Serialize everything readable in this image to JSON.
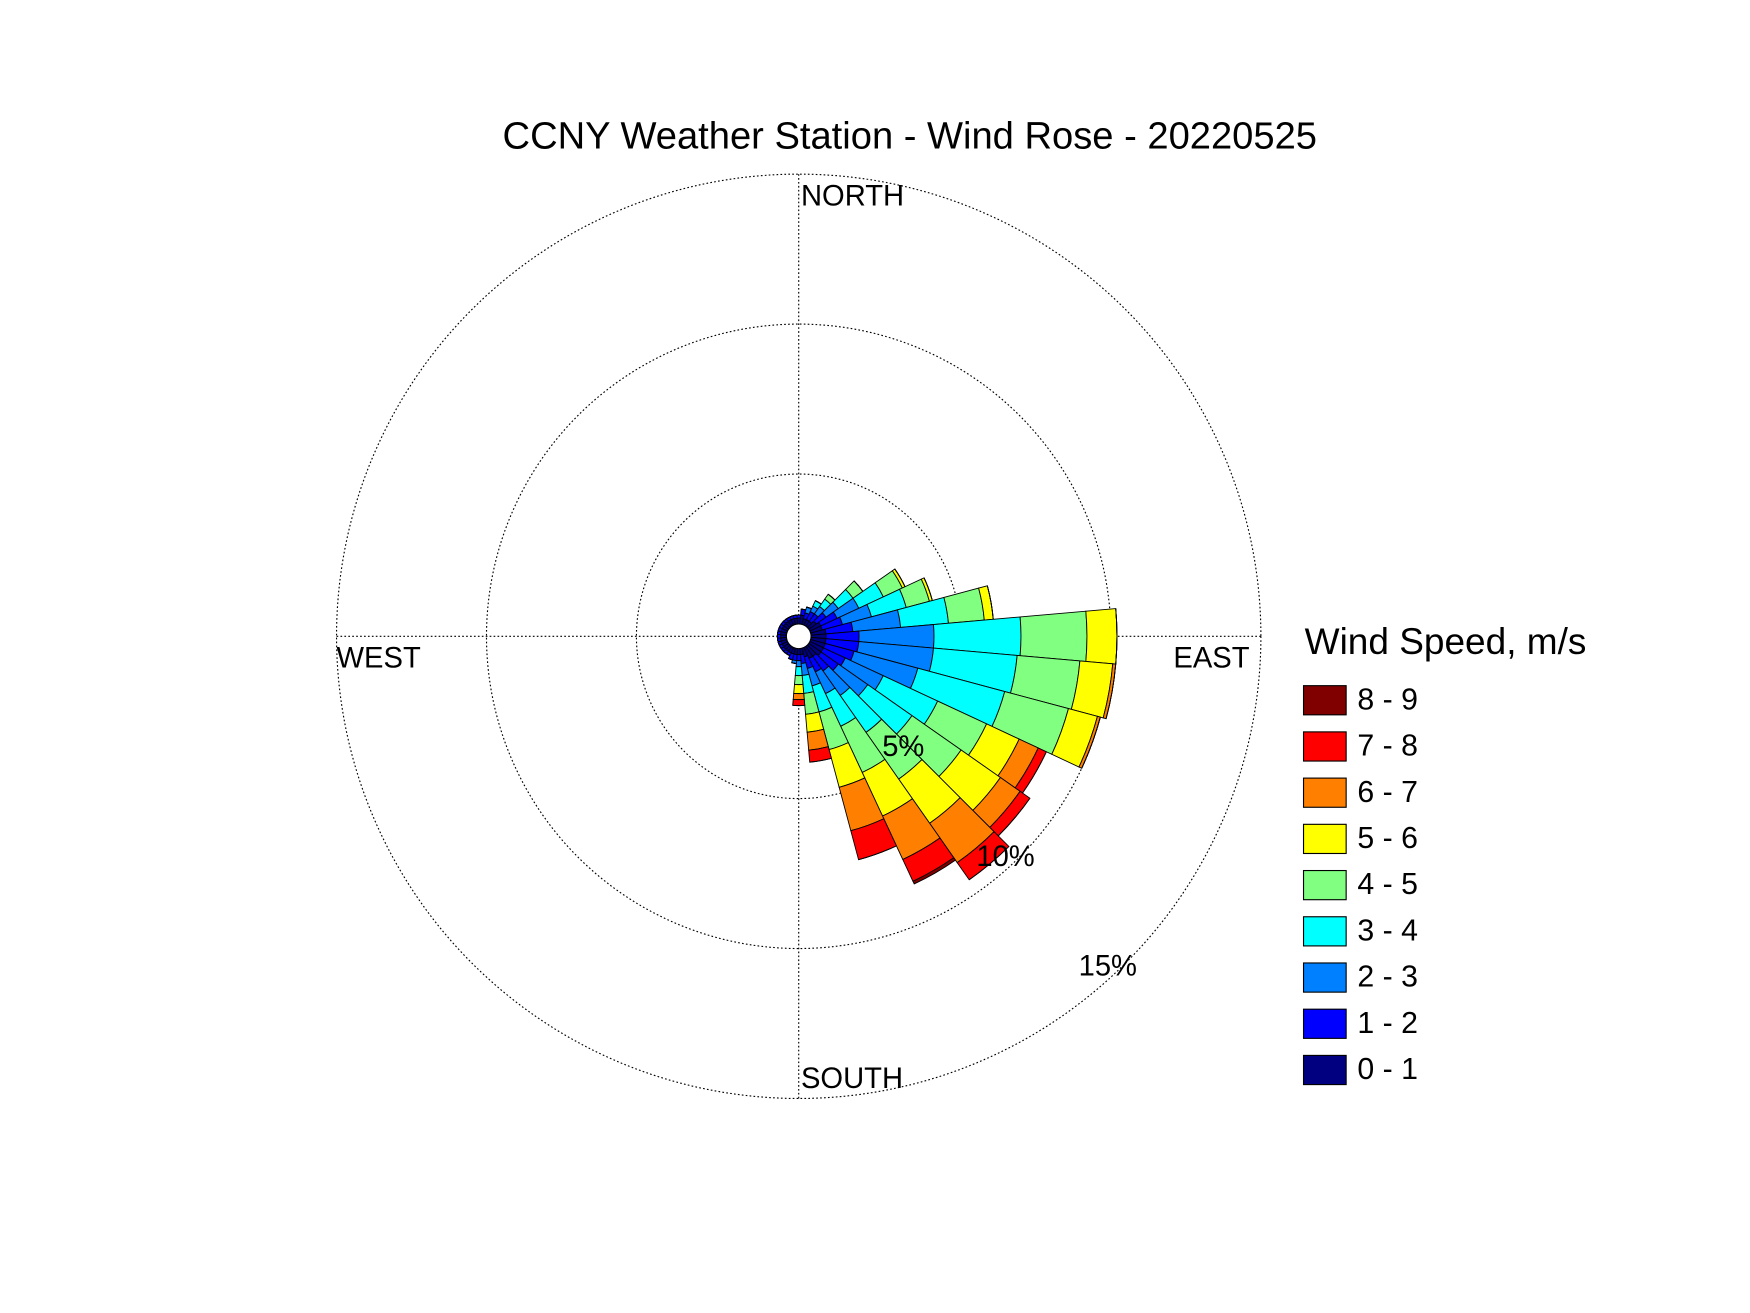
{
  "chart_data": {
    "type": "windrose",
    "title": "CCNY Weather Station - Wind Rose - 20220525",
    "direction_labels": {
      "north": "NORTH",
      "east": "EAST",
      "south": "SOUTH",
      "west": "WEST"
    },
    "legend_title": "Wind Speed, m/s",
    "directions": [
      0,
      10,
      20,
      30,
      40,
      50,
      60,
      70,
      80,
      90,
      100,
      110,
      120,
      130,
      140,
      150,
      160,
      170,
      180,
      190,
      200,
      210,
      220,
      230,
      240,
      250,
      260,
      270,
      280,
      290,
      300,
      310,
      320,
      330,
      340,
      350
    ],
    "rlim": [
      0,
      15
    ],
    "rticks": [
      {
        "value": 5,
        "label": "5%"
      },
      {
        "value": 10,
        "label": "10%"
      },
      {
        "value": 15,
        "label": "15%"
      }
    ],
    "grid": true,
    "legend_position": "right",
    "series": [
      {
        "name": "0 - 1",
        "color": "#000080",
        "values": [
          0.2,
          0.3,
          0.2,
          0.2,
          0.2,
          0.3,
          0.4,
          0.4,
          0.5,
          0.5,
          0.5,
          0.5,
          0.5,
          0.5,
          0.4,
          0.4,
          0.3,
          0.2,
          0.2,
          0.2,
          0.2,
          0.2,
          0.2,
          0.2,
          0.2,
          0.2,
          0.2,
          0.2,
          0.2,
          0.2,
          0.2,
          0.2,
          0.2,
          0.2,
          0.2,
          0.2
        ]
      },
      {
        "name": "1 - 2",
        "color": "#0000ff",
        "values": [
          0.1,
          0.2,
          0.2,
          0.3,
          0.3,
          0.4,
          0.6,
          0.7,
          0.9,
          1.1,
          1.1,
          1.0,
          0.8,
          0.7,
          0.6,
          0.5,
          0.4,
          0.3,
          0.2,
          0.2,
          0.2,
          0.1,
          0.1,
          0.1,
          0.1,
          0.1,
          0.1,
          0.1,
          0.1,
          0.1,
          0.1,
          0.1,
          0.1,
          0.1,
          0.1,
          0.1
        ]
      },
      {
        "name": "2 - 3",
        "color": "#0080ff",
        "values": [
          0,
          0,
          0.2,
          0.2,
          0.3,
          0.5,
          0.8,
          1.0,
          1.6,
          2.5,
          2.5,
          2.2,
          1.4,
          1.2,
          1.0,
          0.8,
          0.6,
          0.4,
          0.2,
          0.1,
          0,
          0,
          0,
          0,
          0,
          0,
          0,
          0,
          0,
          0,
          0,
          0,
          0,
          0,
          0,
          0
        ]
      },
      {
        "name": "3 - 4",
        "color": "#00ffff",
        "values": [
          0,
          0,
          0,
          0.2,
          0.3,
          0.6,
          0.9,
          1.2,
          1.6,
          2.9,
          2.8,
          3.0,
          2.0,
          1.8,
          1.5,
          1.2,
          0.9,
          0.6,
          0.3,
          0,
          0,
          0,
          0,
          0,
          0,
          0,
          0,
          0,
          0,
          0,
          0,
          0,
          0,
          0,
          0,
          0
        ]
      },
      {
        "name": "4 - 5",
        "color": "#80ff80",
        "values": [
          0,
          0,
          0,
          0,
          0.2,
          0.4,
          0.7,
          0.8,
          1.2,
          2.2,
          2.1,
          2.2,
          1.8,
          2.0,
          1.9,
          1.7,
          1.3,
          0.7,
          0.3,
          0,
          0,
          0,
          0,
          0,
          0,
          0,
          0,
          0,
          0,
          0,
          0,
          0,
          0,
          0,
          0,
          0
        ]
      },
      {
        "name": "5 - 6",
        "color": "#ffff00",
        "values": [
          0,
          0,
          0,
          0,
          0,
          0,
          0.1,
          0.1,
          0.3,
          1.0,
          1.1,
          1.0,
          1.2,
          1.6,
          1.8,
          1.6,
          1.3,
          0.6,
          0.3,
          0,
          0,
          0,
          0,
          0,
          0,
          0,
          0,
          0,
          0,
          0,
          0,
          0,
          0,
          0,
          0,
          0
        ]
      },
      {
        "name": "6 - 7",
        "color": "#ff8000",
        "values": [
          0,
          0,
          0,
          0,
          0,
          0,
          0,
          0,
          0,
          0,
          0.1,
          0.1,
          0.7,
          0.8,
          1.6,
          1.6,
          1.5,
          0.6,
          0.2,
          0,
          0,
          0,
          0,
          0,
          0,
          0,
          0,
          0,
          0,
          0,
          0,
          0,
          0,
          0,
          0,
          0
        ]
      },
      {
        "name": "7 - 8",
        "color": "#ff0000",
        "values": [
          0,
          0,
          0,
          0,
          0,
          0,
          0,
          0,
          0,
          0,
          0,
          0,
          0.3,
          0.4,
          0.7,
          0.8,
          1.0,
          0.4,
          0.2,
          0,
          0,
          0,
          0,
          0,
          0,
          0,
          0,
          0,
          0,
          0,
          0,
          0,
          0,
          0,
          0,
          0
        ]
      },
      {
        "name": "8 - 9",
        "color": "#800000",
        "values": [
          0,
          0,
          0,
          0,
          0,
          0,
          0,
          0,
          0,
          0,
          0,
          0,
          0,
          0,
          0,
          0.1,
          0,
          0,
          0,
          0,
          0,
          0,
          0,
          0,
          0,
          0,
          0,
          0,
          0,
          0,
          0,
          0,
          0,
          0,
          0,
          0
        ]
      }
    ]
  }
}
